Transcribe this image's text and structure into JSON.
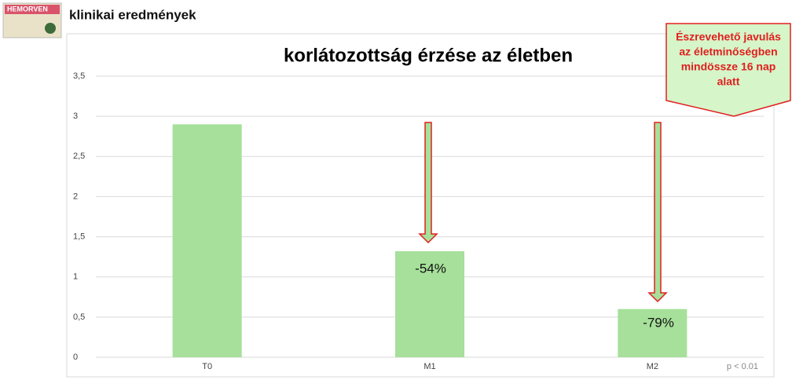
{
  "header": {
    "logo": "HEMORVEN",
    "title": "klinikai eredmények"
  },
  "chart_data": {
    "type": "bar",
    "title": "korlátozottság érzése az életben",
    "categories": [
      "T0",
      "M1",
      "M2"
    ],
    "values": [
      2.9,
      1.32,
      0.6
    ],
    "color": "#a6e09a",
    "ylim": [
      0,
      3.5
    ],
    "yticks": [
      0,
      {
        "value": 0.5,
        "label": "0,5"
      },
      1,
      {
        "value": 1.5,
        "label": "1,5"
      },
      2,
      {
        "value": 2.5,
        "label": "2,5"
      },
      3,
      {
        "value": 3.5,
        "label": "3,5"
      }
    ],
    "grid": true,
    "annotations": [
      "-54%",
      "-79%"
    ],
    "callout": [
      "Észrevehető javulás",
      "az életminőségben",
      "mindössze 16 nap",
      "alatt"
    ],
    "note": "p < 0.01"
  }
}
